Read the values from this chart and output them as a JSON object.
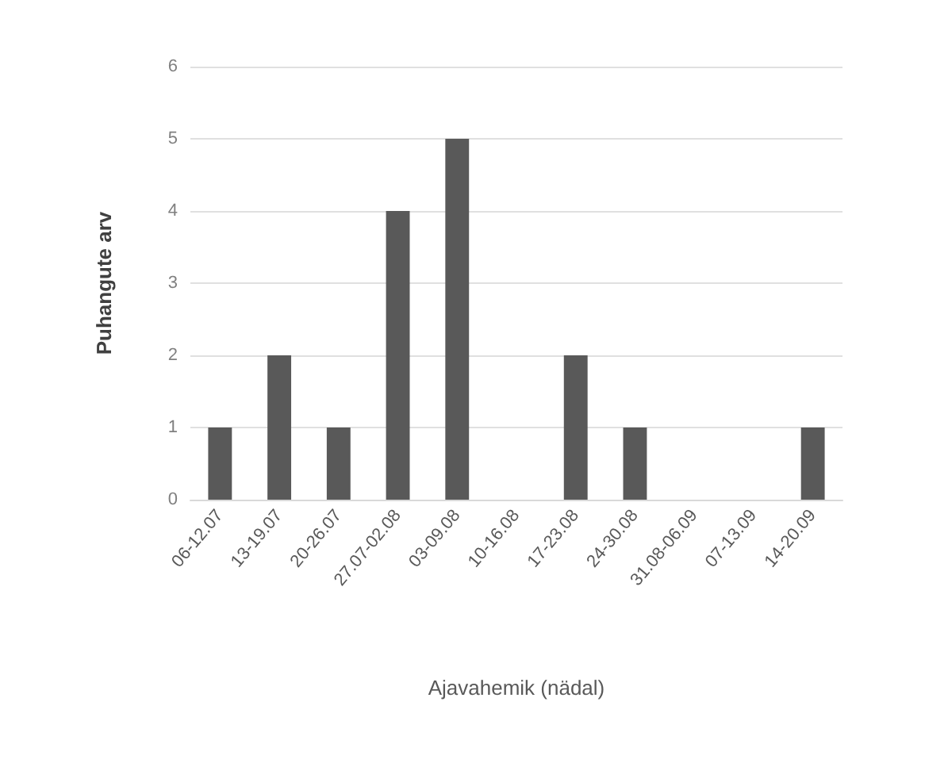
{
  "chart_data": {
    "type": "bar",
    "xlabel": "Ajavahemik (nädal)",
    "ylabel": "Puhangute arv",
    "categories": [
      "06-12.07",
      "13-19.07",
      "20-26.07",
      "27.07-02.08",
      "03-09.08",
      "10-16.08",
      "17-23.08",
      "24-30.08",
      "31.08-06.09",
      "07-13.09",
      "14-20.09"
    ],
    "values": [
      1,
      2,
      1,
      4,
      5,
      0,
      2,
      1,
      0,
      0,
      1
    ],
    "color": "#595959",
    "ylim": [
      0,
      6
    ],
    "yticks": [
      0,
      1,
      2,
      3,
      4,
      5,
      6
    ],
    "grid": "y"
  }
}
